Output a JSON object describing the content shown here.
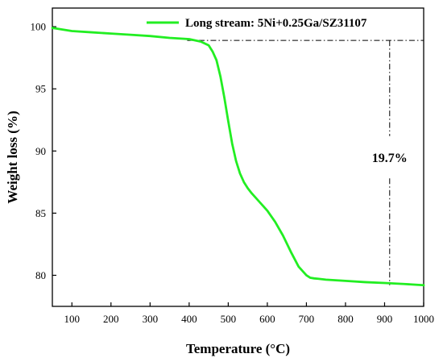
{
  "chart_data": {
    "type": "line",
    "xlabel": "Temperature (°C)",
    "ylabel": "Weight loss (%)",
    "xlim": [
      50,
      1000
    ],
    "ylim": [
      77.5,
      101.5
    ],
    "xticks": [
      100,
      200,
      300,
      400,
      500,
      600,
      700,
      800,
      900,
      1000
    ],
    "yticks": [
      80,
      85,
      90,
      95,
      100
    ],
    "grid": false,
    "legend_position": "top-right",
    "series": [
      {
        "name": "Long stream: 5Ni+0.25Ga/SZ31107",
        "color": "#22ee22",
        "x": [
          50,
          100,
          150,
          200,
          250,
          300,
          350,
          400,
          430,
          450,
          460,
          470,
          480,
          490,
          500,
          510,
          520,
          530,
          540,
          550,
          560,
          580,
          600,
          620,
          640,
          660,
          680,
          700,
          710,
          720,
          730,
          750,
          800,
          850,
          900,
          950,
          1000
        ],
        "y": [
          99.9,
          99.65,
          99.55,
          99.45,
          99.35,
          99.25,
          99.1,
          99.0,
          98.8,
          98.5,
          98.0,
          97.3,
          96.0,
          94.3,
          92.4,
          90.6,
          89.2,
          88.2,
          87.5,
          87.0,
          86.6,
          85.9,
          85.2,
          84.3,
          83.2,
          81.9,
          80.7,
          80.0,
          79.8,
          79.75,
          79.72,
          79.65,
          79.55,
          79.45,
          79.38,
          79.3,
          79.2
        ]
      }
    ],
    "annotation": {
      "label": "19.7%",
      "x": 913,
      "y_top": 98.9,
      "y_bottom": 79.2
    }
  },
  "colors": {
    "series": "#22ee22",
    "axis": "#000000",
    "reference_line": "#000000"
  }
}
